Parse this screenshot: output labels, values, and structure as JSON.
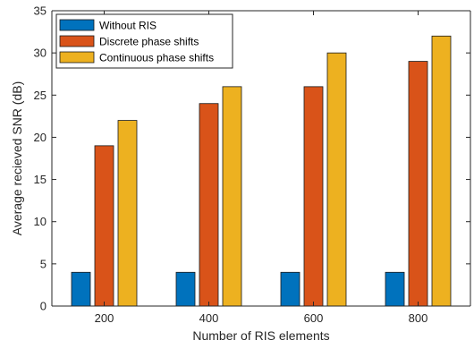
{
  "chart_data": {
    "type": "bar",
    "title": "",
    "xlabel": "Number of RIS elements",
    "ylabel": "Average recieved SNR (dB)",
    "categories": [
      "200",
      "400",
      "600",
      "800"
    ],
    "ylim": [
      0,
      35
    ],
    "yticks": [
      0,
      5,
      10,
      15,
      20,
      25,
      30,
      35
    ],
    "grid": false,
    "legend_position": "top-left",
    "series": [
      {
        "name": "Without RIS",
        "color": "#0072BD",
        "values": [
          4,
          4,
          4,
          4
        ]
      },
      {
        "name": "Discrete phase shifts",
        "color": "#D95319",
        "values": [
          19,
          24,
          26,
          29
        ]
      },
      {
        "name": "Continuous phase shifts",
        "color": "#EDB120",
        "values": [
          22,
          26,
          30,
          32
        ]
      }
    ]
  }
}
